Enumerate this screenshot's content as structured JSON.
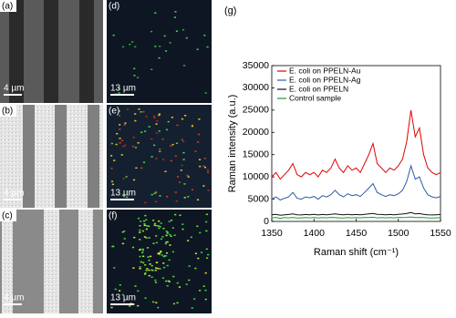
{
  "panels": [
    {
      "label": "(a)",
      "scale": "4 µm"
    },
    {
      "label": "(b)",
      "scale": "4 µm"
    },
    {
      "label": "(c)",
      "scale": "4 µm"
    },
    {
      "label": "(d)",
      "scale": "13 µm"
    },
    {
      "label": "(e)",
      "scale": "13 µm"
    },
    {
      "label": "(f)",
      "scale": "13 µm"
    }
  ],
  "chart_data": {
    "type": "line",
    "label": "(g)",
    "x_label": "Raman shift (cm⁻¹)",
    "y_label": "Raman intensity (a.u.)",
    "x": [
      1350,
      1355,
      1360,
      1365,
      1370,
      1375,
      1380,
      1385,
      1390,
      1395,
      1400,
      1405,
      1410,
      1415,
      1420,
      1425,
      1430,
      1435,
      1440,
      1445,
      1450,
      1455,
      1460,
      1465,
      1470,
      1475,
      1480,
      1485,
      1490,
      1495,
      1500,
      1505,
      1510,
      1515,
      1520,
      1525,
      1530,
      1535,
      1540,
      1545,
      1550
    ],
    "series": [
      {
        "name": "E. coli on PPELN-Au",
        "color": "#e00000",
        "values": [
          10000,
          11000,
          9500,
          10500,
          11500,
          13000,
          10500,
          10000,
          11000,
          10500,
          11000,
          10000,
          11500,
          11000,
          12000,
          14000,
          12000,
          11000,
          12500,
          11500,
          12000,
          11000,
          13000,
          15000,
          17500,
          13000,
          12000,
          11000,
          12000,
          11500,
          12500,
          14000,
          18000,
          25000,
          19000,
          21000,
          15000,
          12000,
          11000,
          10500,
          11000
        ]
      },
      {
        "name": "E. coli on PPELN-Ag",
        "color": "#2b5ba8",
        "values": [
          5000,
          5500,
          4800,
          5200,
          5500,
          6500,
          5200,
          5000,
          5500,
          5300,
          5600,
          5000,
          5800,
          5500,
          6000,
          7000,
          6000,
          5500,
          6200,
          5800,
          6000,
          5600,
          6500,
          7500,
          8500,
          6500,
          6000,
          5600,
          6000,
          5800,
          6200,
          7000,
          9000,
          12500,
          9500,
          10000,
          7500,
          6000,
          5500,
          5300,
          5600
        ]
      },
      {
        "name": "E. coli on PPELN",
        "color": "#111111",
        "values": [
          1500,
          1600,
          1400,
          1500,
          1550,
          1700,
          1500,
          1450,
          1550,
          1500,
          1600,
          1450,
          1550,
          1500,
          1600,
          1700,
          1550,
          1500,
          1600,
          1500,
          1550,
          1500,
          1600,
          1700,
          1800,
          1600,
          1550,
          1500,
          1550,
          1500,
          1600,
          1650,
          1800,
          2000,
          1700,
          1750,
          1600,
          1500,
          1450,
          1500,
          1550
        ]
      },
      {
        "name": "Control sample",
        "color": "#1a9a3a",
        "values": [
          800,
          900,
          700,
          850,
          800,
          900,
          750,
          800,
          850,
          800,
          900,
          750,
          850,
          800,
          900,
          850,
          800,
          750,
          850,
          800,
          850,
          800,
          900,
          850,
          950,
          800,
          850,
          800,
          850,
          800,
          900,
          850,
          900,
          1000,
          850,
          900,
          850,
          800,
          750,
          800,
          850
        ]
      }
    ],
    "xlim": [
      1350,
      1550
    ],
    "xticks": [
      1350,
      1400,
      1450,
      1500,
      1550
    ],
    "ylim": [
      0,
      35000
    ],
    "yticks": [
      0,
      5000,
      10000,
      15000,
      20000,
      25000,
      30000,
      35000
    ],
    "legend": "upper-left"
  }
}
